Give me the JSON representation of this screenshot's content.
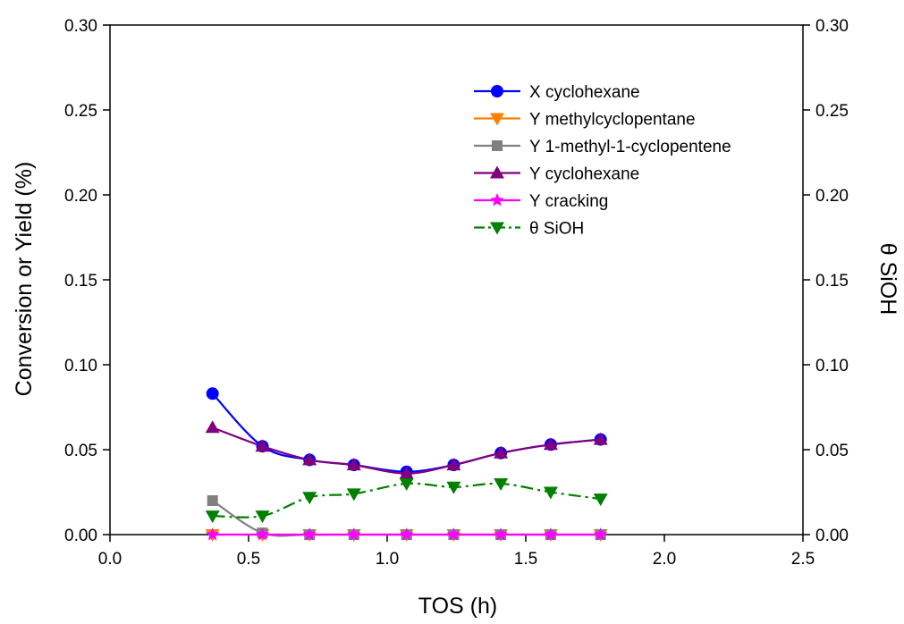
{
  "chart_data": {
    "type": "line",
    "xlabel": "TOS (h)",
    "ylabel": "Conversion or Yield (%)",
    "y2label": "θ SiOH",
    "xlim": [
      0.0,
      2.5
    ],
    "ylim": [
      0.0,
      0.3
    ],
    "y2lim": [
      0.0,
      0.3
    ],
    "xticks": [
      "0.0",
      "0.5",
      "1.0",
      "1.5",
      "2.0",
      "2.5"
    ],
    "yticks": [
      "0.00",
      "0.05",
      "0.10",
      "0.15",
      "0.20",
      "0.25",
      "0.30"
    ],
    "y2ticks": [
      "0.00",
      "0.05",
      "0.10",
      "0.15",
      "0.20",
      "0.25",
      "0.30"
    ],
    "grid": false,
    "legend_position": "top-right",
    "x": [
      0.37,
      0.55,
      0.72,
      0.88,
      1.07,
      1.24,
      1.41,
      1.59,
      1.77
    ],
    "series": [
      {
        "name": "X cyclohexane",
        "color": "#0000ff",
        "marker": "circle",
        "line": "solid",
        "axis": "left",
        "values": [
          0.083,
          0.052,
          0.044,
          0.041,
          0.037,
          0.041,
          0.048,
          0.053,
          0.056
        ]
      },
      {
        "name": "Y methylcyclopentane",
        "color": "#ff7f00",
        "marker": "triangle-down",
        "line": "solid",
        "axis": "left",
        "values": [
          0.0,
          0.0,
          0.0,
          0.0,
          0.0,
          0.0,
          0.0,
          0.0,
          0.0
        ]
      },
      {
        "name": "Y 1-methyl-1-cyclopentene",
        "color": "#808080",
        "marker": "square",
        "line": "solid",
        "axis": "left",
        "values": [
          0.02,
          0.001,
          0.0,
          0.0,
          0.0,
          0.0,
          0.0,
          0.0,
          0.0
        ]
      },
      {
        "name": "Y cyclohexane",
        "color": "#800080",
        "marker": "triangle-up",
        "line": "solid",
        "axis": "left",
        "values": [
          0.063,
          0.052,
          0.044,
          0.041,
          0.036,
          0.041,
          0.048,
          0.053,
          0.056
        ]
      },
      {
        "name": "Y cracking",
        "color": "#ff00ff",
        "marker": "star",
        "line": "solid",
        "axis": "left",
        "values": [
          0.0,
          0.0,
          0.0,
          0.0,
          0.0,
          0.0,
          0.0,
          0.0,
          0.0
        ]
      },
      {
        "name": "θ SiOH",
        "color": "#008000",
        "marker": "triangle-down",
        "line": "dashdot",
        "axis": "right",
        "values": [
          0.011,
          0.011,
          0.022,
          0.024,
          0.03,
          0.028,
          0.03,
          0.025,
          0.021
        ]
      }
    ]
  }
}
